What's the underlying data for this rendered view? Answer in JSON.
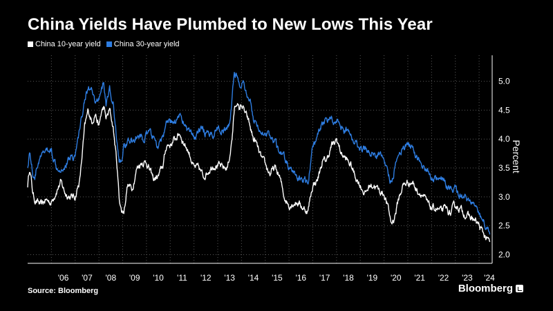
{
  "header": {
    "title": "China Yields Have Plumbed to New Lows This Year"
  },
  "footer": {
    "source": "Source: Bloomberg",
    "brand": "Bloomberg"
  },
  "colors": {
    "background": "#000000",
    "ten_year": "#ffffff",
    "thirty_year": "#2e7de1",
    "grid": "#5a5a5a"
  },
  "chart_data": {
    "type": "line",
    "title": "China Yields Have Plumbed to New Lows This Year",
    "ylabel": "Percent",
    "xlabel": "",
    "ylim": [
      1.85,
      5.45
    ],
    "xlim": [
      2005.0,
      2024.55
    ],
    "y_ticks": [
      "2.0",
      "2.5",
      "3.0",
      "3.5",
      "4.0",
      "4.5",
      "5.0"
    ],
    "x_ticks": [
      "'06",
      "'07",
      "'08",
      "'09",
      "'10",
      "'11",
      "'12",
      "'13",
      "'14",
      "'15",
      "'16",
      "'17",
      "'18",
      "'19",
      "'20",
      "'21",
      "'22",
      "'23",
      "'24"
    ],
    "grid": true,
    "legend_position": "top-left",
    "series": [
      {
        "name": "China 10-year yield",
        "color": "#ffffff",
        "x": [
          2005.0,
          2005.08,
          2005.15,
          2005.22,
          2005.3,
          2005.45,
          2005.6,
          2005.75,
          2006.0,
          2006.2,
          2006.4,
          2006.6,
          2006.8,
          2007.0,
          2007.2,
          2007.4,
          2007.55,
          2007.7,
          2007.85,
          2008.0,
          2008.1,
          2008.2,
          2008.3,
          2008.45,
          2008.6,
          2008.75,
          2008.85,
          2008.95,
          2009.05,
          2009.2,
          2009.4,
          2009.6,
          2009.8,
          2010.0,
          2010.15,
          2010.3,
          2010.5,
          2010.7,
          2010.85,
          2011.0,
          2011.2,
          2011.4,
          2011.55,
          2011.7,
          2011.85,
          2012.0,
          2012.2,
          2012.4,
          2012.6,
          2012.8,
          2013.0,
          2013.2,
          2013.4,
          2013.5,
          2013.6,
          2013.7,
          2013.8,
          2013.9,
          2014.0,
          2014.1,
          2014.2,
          2014.3,
          2014.4,
          2014.5,
          2014.6,
          2014.8,
          2015.0,
          2015.2,
          2015.4,
          2015.6,
          2015.8,
          2016.0,
          2016.2,
          2016.4,
          2016.6,
          2016.8,
          2016.9,
          2017.0,
          2017.2,
          2017.4,
          2017.6,
          2017.8,
          2017.9,
          2018.0,
          2018.2,
          2018.4,
          2018.6,
          2018.8,
          2019.0,
          2019.2,
          2019.4,
          2019.6,
          2019.8,
          2020.0,
          2020.15,
          2020.3,
          2020.4,
          2020.5,
          2020.6,
          2020.8,
          2021.0,
          2021.2,
          2021.4,
          2021.6,
          2021.8,
          2022.0,
          2022.2,
          2022.4,
          2022.6,
          2022.8,
          2022.9,
          2023.0,
          2023.2,
          2023.4,
          2023.6,
          2023.8,
          2024.0,
          2024.2,
          2024.35,
          2024.45
        ],
        "values": [
          3.2,
          3.5,
          3.3,
          3.05,
          2.95,
          2.9,
          2.85,
          2.95,
          2.9,
          3.1,
          3.25,
          3.05,
          3.0,
          3.0,
          3.3,
          4.2,
          4.5,
          4.3,
          4.45,
          4.2,
          4.45,
          4.55,
          4.35,
          4.5,
          4.2,
          3.6,
          3.0,
          2.75,
          2.75,
          3.2,
          3.15,
          3.5,
          3.6,
          3.6,
          3.45,
          3.3,
          3.35,
          3.55,
          3.9,
          3.9,
          4.0,
          4.1,
          3.95,
          3.85,
          3.7,
          3.5,
          3.5,
          3.35,
          3.45,
          3.55,
          3.55,
          3.5,
          3.5,
          3.7,
          4.0,
          4.5,
          4.65,
          4.5,
          4.6,
          4.5,
          4.4,
          4.3,
          4.15,
          4.0,
          3.95,
          3.7,
          3.55,
          3.4,
          3.5,
          3.35,
          3.0,
          2.85,
          2.9,
          2.9,
          2.8,
          2.75,
          3.0,
          3.2,
          3.3,
          3.6,
          3.65,
          3.9,
          3.9,
          4.0,
          3.75,
          3.65,
          3.55,
          3.35,
          3.2,
          3.05,
          3.2,
          3.2,
          3.1,
          3.05,
          2.85,
          2.55,
          2.6,
          2.75,
          2.95,
          3.2,
          3.25,
          3.25,
          3.1,
          3.05,
          2.9,
          2.8,
          2.8,
          2.75,
          2.8,
          2.7,
          2.8,
          2.85,
          2.8,
          2.7,
          2.65,
          2.6,
          2.5,
          2.35,
          2.25,
          2.22
        ]
      },
      {
        "name": "China 30-year yield",
        "color": "#2e7de1",
        "x": [
          2005.0,
          2005.08,
          2005.15,
          2005.22,
          2005.3,
          2005.45,
          2005.6,
          2005.75,
          2006.0,
          2006.2,
          2006.4,
          2006.6,
          2006.8,
          2007.0,
          2007.2,
          2007.4,
          2007.55,
          2007.7,
          2007.85,
          2008.0,
          2008.1,
          2008.2,
          2008.3,
          2008.45,
          2008.6,
          2008.75,
          2008.85,
          2008.95,
          2009.05,
          2009.2,
          2009.4,
          2009.6,
          2009.8,
          2010.0,
          2010.15,
          2010.3,
          2010.5,
          2010.7,
          2010.85,
          2011.0,
          2011.2,
          2011.4,
          2011.55,
          2011.7,
          2011.85,
          2012.0,
          2012.2,
          2012.4,
          2012.6,
          2012.8,
          2013.0,
          2013.2,
          2013.4,
          2013.5,
          2013.6,
          2013.7,
          2013.8,
          2013.9,
          2014.0,
          2014.1,
          2014.2,
          2014.3,
          2014.4,
          2014.5,
          2014.6,
          2014.8,
          2015.0,
          2015.2,
          2015.4,
          2015.6,
          2015.8,
          2016.0,
          2016.2,
          2016.4,
          2016.6,
          2016.8,
          2016.9,
          2017.0,
          2017.2,
          2017.4,
          2017.6,
          2017.8,
          2017.9,
          2018.0,
          2018.2,
          2018.4,
          2018.6,
          2018.8,
          2019.0,
          2019.2,
          2019.4,
          2019.6,
          2019.8,
          2020.0,
          2020.15,
          2020.3,
          2020.4,
          2020.5,
          2020.6,
          2020.8,
          2021.0,
          2021.2,
          2021.4,
          2021.6,
          2021.8,
          2022.0,
          2022.2,
          2022.4,
          2022.6,
          2022.8,
          2022.9,
          2023.0,
          2023.2,
          2023.4,
          2023.6,
          2023.8,
          2024.0,
          2024.2,
          2024.35,
          2024.45
        ],
        "values": [
          3.5,
          3.8,
          3.6,
          3.4,
          3.35,
          3.6,
          3.7,
          3.8,
          3.8,
          3.55,
          3.5,
          3.55,
          3.7,
          3.7,
          4.2,
          4.7,
          4.9,
          4.8,
          4.6,
          4.7,
          4.9,
          4.95,
          4.6,
          4.85,
          4.6,
          4.0,
          3.6,
          3.6,
          3.9,
          3.95,
          3.95,
          4.05,
          4.0,
          4.05,
          4.1,
          4.0,
          3.85,
          4.05,
          4.25,
          4.3,
          4.3,
          4.45,
          4.3,
          4.15,
          4.1,
          4.0,
          4.15,
          4.15,
          4.05,
          4.1,
          4.2,
          4.15,
          4.15,
          4.25,
          4.7,
          5.15,
          5.1,
          4.9,
          5.0,
          4.95,
          4.8,
          4.6,
          4.6,
          4.35,
          4.35,
          4.05,
          4.15,
          4.05,
          3.95,
          3.75,
          3.7,
          3.5,
          3.4,
          3.3,
          3.3,
          3.25,
          3.55,
          3.9,
          4.05,
          4.3,
          4.35,
          4.35,
          4.3,
          4.35,
          4.2,
          4.15,
          4.05,
          3.95,
          3.85,
          3.85,
          3.8,
          3.7,
          3.75,
          3.7,
          3.4,
          3.25,
          3.4,
          3.6,
          3.75,
          3.85,
          3.9,
          3.85,
          3.65,
          3.55,
          3.45,
          3.35,
          3.3,
          3.3,
          3.2,
          3.1,
          3.1,
          3.15,
          3.05,
          3.0,
          2.95,
          2.85,
          2.75,
          2.55,
          2.45,
          2.35
        ]
      }
    ]
  }
}
